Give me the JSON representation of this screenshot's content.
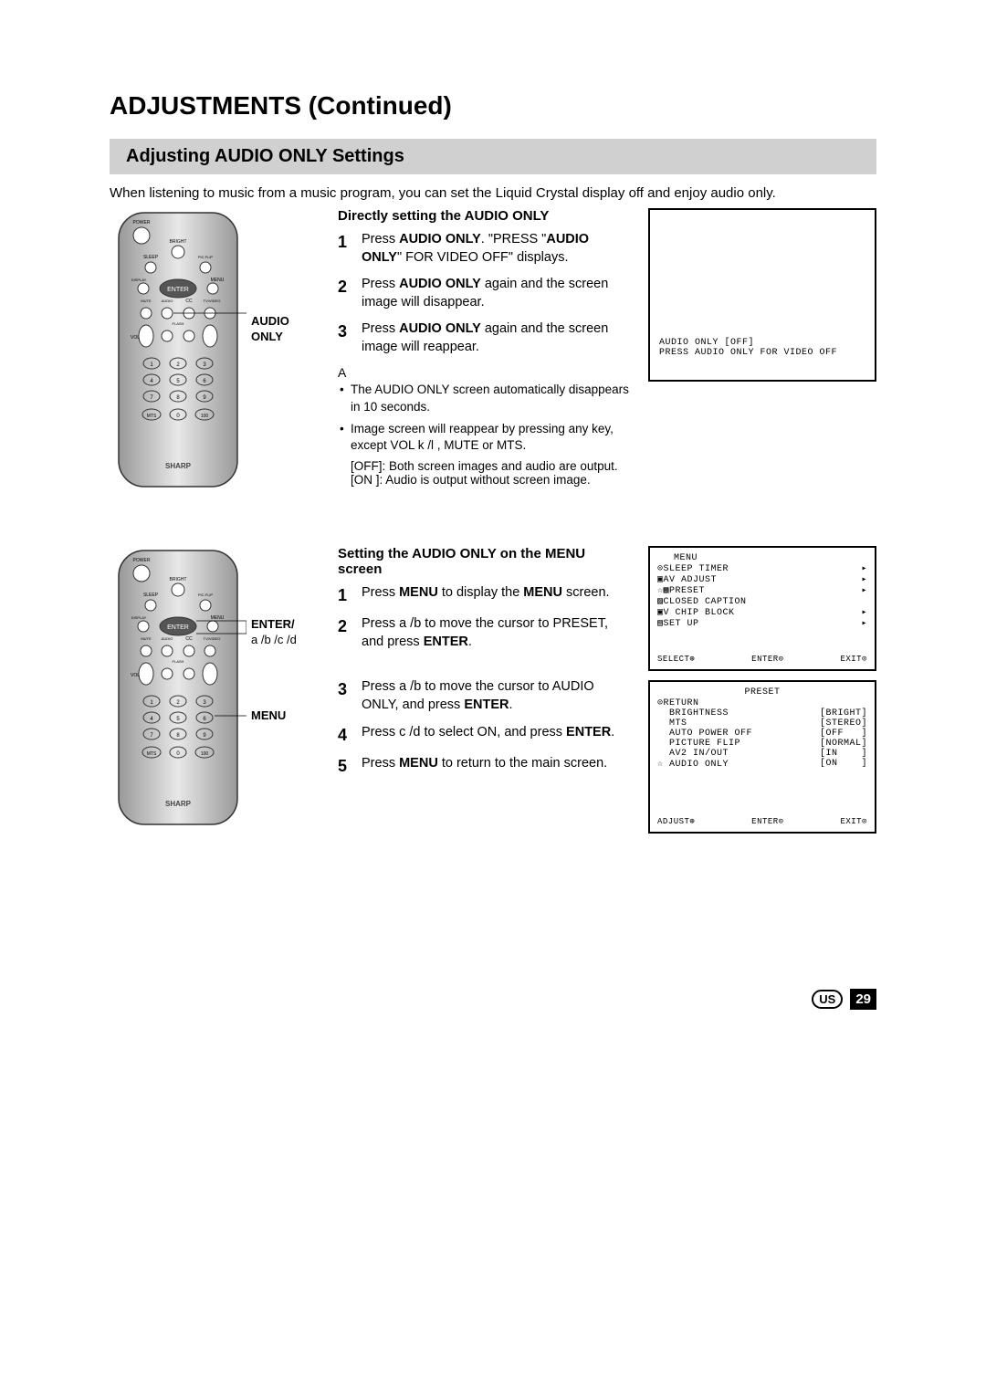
{
  "pageTitle": "ADJUSTMENTS (Continued)",
  "sectionHeader": "Adjusting AUDIO ONLY Settings",
  "intro": "When listening to music from a music program, you can set the Liquid Crystal display off and enjoy audio only.",
  "section1": {
    "head": "Directly setting the AUDIO ONLY",
    "remoteLabel": "AUDIO ONLY",
    "steps": [
      {
        "n": "1",
        "t": "Press AUDIO ONLY. \"PRESS \"AUDIO ONLY\" FOR VIDEO OFF\" displays."
      },
      {
        "n": "2",
        "t": "Press AUDIO ONLY again and the screen image will disappear."
      },
      {
        "n": "3",
        "t": "Press AUDIO ONLY again and the screen image will reappear."
      }
    ],
    "noteHead": "A",
    "notes": [
      "The AUDIO ONLY screen automatically disappears in 10 seconds.",
      "Image screen will reappear by pressing any key, except VOL k /l , MUTE or MTS."
    ],
    "noteSub": [
      "[OFF]: Both screen images and audio are output.",
      "[ON ]: Audio is output without screen image."
    ],
    "screen": {
      "l1": "AUDIO ONLY [OFF]",
      "l2": "PRESS AUDIO ONLY FOR VIDEO OFF"
    }
  },
  "section2": {
    "head": "Setting the AUDIO ONLY on the MENU screen",
    "remoteLabel1": "ENTER/",
    "remoteLabel1sub": "a /b /c /d",
    "remoteLabel2": "MENU",
    "steps": [
      {
        "n": "1",
        "t": "Press MENU to display the MENU screen."
      },
      {
        "n": "2",
        "t": "Press a /b  to move the cursor to PRESET, and press ENTER."
      },
      {
        "n": "3",
        "t": "Press a /b  to move the cursor to AUDIO ONLY, and press ENTER."
      },
      {
        "n": "4",
        "t": "Press c /d  to select ON, and press ENTER."
      },
      {
        "n": "5",
        "t": "Press MENU to return to the main screen."
      }
    ],
    "menu": {
      "title": "MENU",
      "rows": [
        {
          "l": "⊙SLEEP TIMER",
          "r": "▸"
        },
        {
          "l": "▣AV ADJUST",
          "r": "▸"
        },
        {
          "l": "☆▦PRESET",
          "r": "▸"
        },
        {
          "l": "▨CLOSED CAPTION",
          "r": ""
        },
        {
          "l": "▣V CHIP BLOCK",
          "r": "▸"
        },
        {
          "l": "▤SET UP",
          "r": "▸"
        }
      ],
      "footer": {
        "a": "SELECT⊕",
        "b": "ENTER⊙",
        "c": "EXIT⊙"
      }
    },
    "preset": {
      "title": "PRESET",
      "rows": [
        {
          "l": "⊙RETURN",
          "r": ""
        },
        {
          "l": "  BRIGHTNESS",
          "r": "[BRIGHT]"
        },
        {
          "l": "  MTS",
          "r": "[STEREO]"
        },
        {
          "l": "  AUTO POWER OFF",
          "r": "[OFF   ]"
        },
        {
          "l": "  PICTURE FLIP",
          "r": "[NORMAL]"
        },
        {
          "l": "  AV2 IN/OUT",
          "r": "[IN    ]"
        },
        {
          "l": "☆ AUDIO ONLY",
          "r": "[ON    ]"
        }
      ],
      "footer": {
        "a": "ADJUST⊕",
        "b": "ENTER⊙",
        "c": "EXIT⊙"
      }
    }
  },
  "footer": {
    "region": "US",
    "page": "29"
  },
  "remote": {
    "brand": "SHARP",
    "rows": [
      "POWER",
      "BRIGHT",
      "SLEEP PIC.FLIP",
      "DISPLAY ENTER MENU",
      "MUTE AUDIO CC TV/VIDEO",
      "VOL FLASH",
      "1 2 3",
      "4 5 6",
      "7 8 9",
      "MTS 0 100"
    ]
  }
}
